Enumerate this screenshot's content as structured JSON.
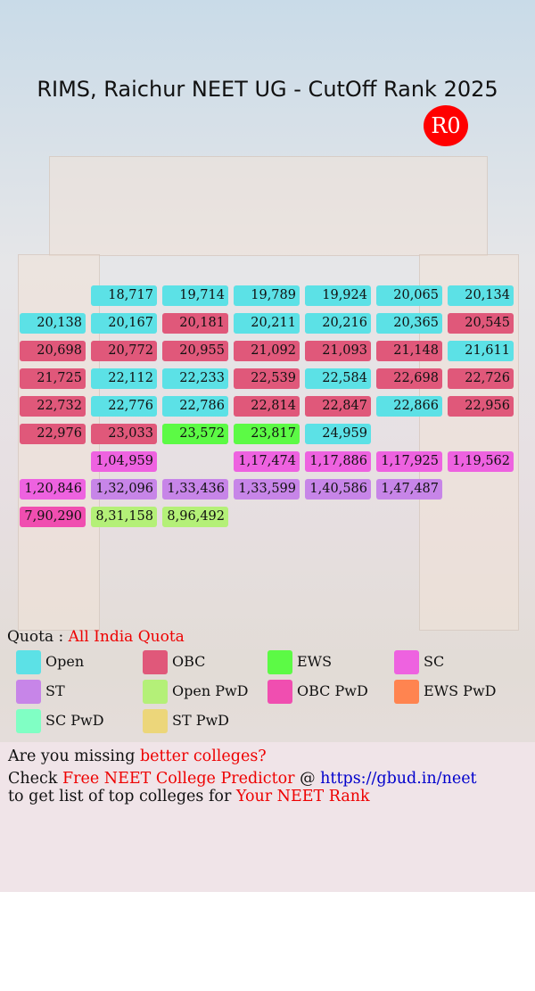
{
  "header": {
    "title": "RIMS, Raichur NEET UG - CutOff Rank 2025",
    "round": "R0"
  },
  "grid": {
    "rows": [
      [
        null,
        {
          "text": "18,717",
          "quota": "Open"
        },
        {
          "text": "19,714",
          "quota": "Open"
        },
        {
          "text": "19,789",
          "quota": "Open"
        },
        {
          "text": "19,924",
          "quota": "Open"
        },
        {
          "text": "20,065",
          "quota": "Open"
        },
        {
          "text": "20,134",
          "quota": "Open"
        }
      ],
      [
        {
          "text": "20,138",
          "quota": "Open"
        },
        {
          "text": "20,167",
          "quota": "Open"
        },
        {
          "text": "20,181",
          "quota": "OBC"
        },
        {
          "text": "20,211",
          "quota": "Open"
        },
        {
          "text": "20,216",
          "quota": "Open"
        },
        {
          "text": "20,365",
          "quota": "Open"
        },
        {
          "text": "20,545",
          "quota": "OBC"
        }
      ],
      [
        {
          "text": "20,698",
          "quota": "OBC"
        },
        {
          "text": "20,772",
          "quota": "OBC"
        },
        {
          "text": "20,955",
          "quota": "OBC"
        },
        {
          "text": "21,092",
          "quota": "OBC"
        },
        {
          "text": "21,093",
          "quota": "OBC"
        },
        {
          "text": "21,148",
          "quota": "OBC"
        },
        {
          "text": "21,611",
          "quota": "Open"
        }
      ],
      [
        {
          "text": "21,725",
          "quota": "OBC"
        },
        {
          "text": "22,112",
          "quota": "Open"
        },
        {
          "text": "22,233",
          "quota": "Open"
        },
        {
          "text": "22,539",
          "quota": "OBC"
        },
        {
          "text": "22,584",
          "quota": "Open"
        },
        {
          "text": "22,698",
          "quota": "OBC"
        },
        {
          "text": "22,726",
          "quota": "OBC"
        }
      ],
      [
        {
          "text": "22,732",
          "quota": "OBC"
        },
        {
          "text": "22,776",
          "quota": "Open"
        },
        {
          "text": "22,786",
          "quota": "Open"
        },
        {
          "text": "22,814",
          "quota": "OBC"
        },
        {
          "text": "22,847",
          "quota": "OBC"
        },
        {
          "text": "22,866",
          "quota": "Open"
        },
        {
          "text": "22,956",
          "quota": "OBC"
        }
      ],
      [
        {
          "text": "22,976",
          "quota": "OBC"
        },
        {
          "text": "23,033",
          "quota": "OBC"
        },
        {
          "text": "23,572",
          "quota": "EWS"
        },
        {
          "text": "23,817",
          "quota": "EWS"
        },
        {
          "text": "24,959",
          "quota": "Open"
        },
        null,
        null
      ],
      [
        null,
        {
          "text": "1,04,959",
          "quota": "SC"
        },
        null,
        {
          "text": "1,17,474",
          "quota": "SC"
        },
        {
          "text": "1,17,886",
          "quota": "SC"
        },
        {
          "text": "1,17,925",
          "quota": "SC"
        },
        {
          "text": "1,19,562",
          "quota": "SC"
        }
      ],
      [
        {
          "text": "1,20,846",
          "quota": "SC"
        },
        {
          "text": "1,32,096",
          "quota": "ST"
        },
        {
          "text": "1,33,436",
          "quota": "ST"
        },
        {
          "text": "1,33,599",
          "quota": "ST"
        },
        {
          "text": "1,40,586",
          "quota": "ST"
        },
        {
          "text": "1,47,487",
          "quota": "ST"
        },
        null
      ],
      [
        {
          "text": "7,90,290",
          "quota": "OBC PwD"
        },
        {
          "text": "8,31,158",
          "quota": "Open PwD"
        },
        {
          "text": "8,96,492",
          "quota": "Open PwD"
        },
        null,
        null,
        null,
        null
      ]
    ]
  },
  "quota": {
    "label": "Quota :",
    "value": "All India Quota"
  },
  "legend": [
    {
      "label": "Open",
      "color": "#5ce1e6"
    },
    {
      "label": "OBC",
      "color": "#e0587a"
    },
    {
      "label": "EWS",
      "color": "#5cfa45"
    },
    {
      "label": "SC",
      "color": "#ee62e0"
    },
    {
      "label": "ST",
      "color": "#c785e8"
    },
    {
      "label": "Open PwD",
      "color": "#b4f078"
    },
    {
      "label": "OBC PwD",
      "color": "#f04eb0"
    },
    {
      "label": "EWS PwD",
      "color": "#ff8450"
    },
    {
      "label": "SC PwD",
      "color": "#80ffc4"
    },
    {
      "label": "ST PwD",
      "color": "#ecd67a"
    }
  ],
  "footer": {
    "line1": [
      "Are you missing ",
      "better colleges?"
    ],
    "line2": [
      "Check ",
      "Free NEET College Predictor",
      " @ ",
      "https://gbud.in/neet"
    ],
    "line3": [
      "to get list of top colleges for ",
      "Your NEET Rank"
    ]
  }
}
